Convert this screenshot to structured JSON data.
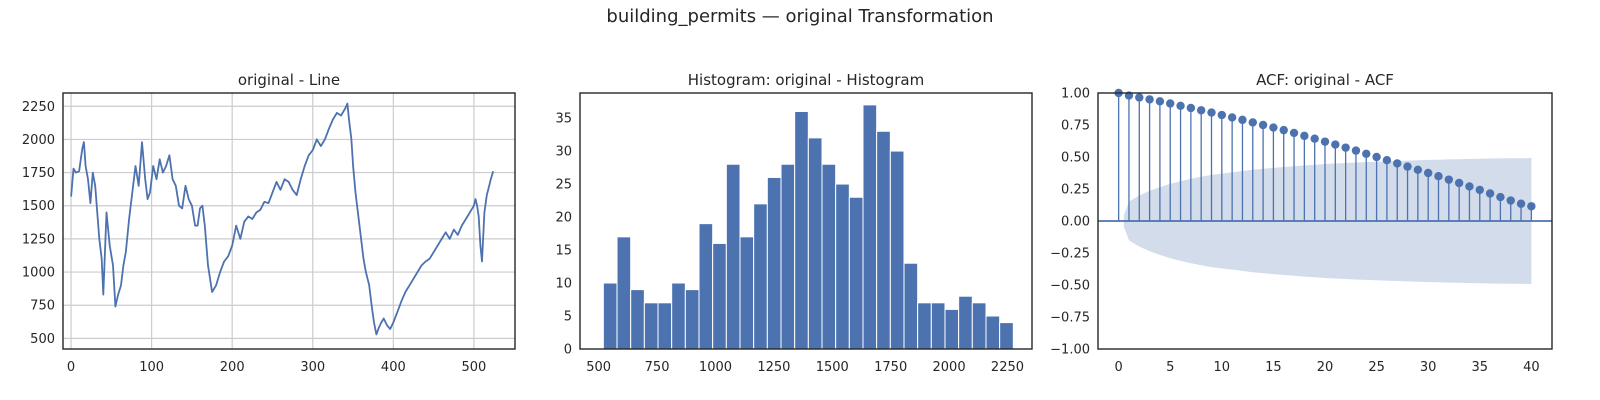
{
  "figure": {
    "title": "building_permits — original Transformation"
  },
  "chart_data": [
    {
      "type": "line",
      "title": "original - Line",
      "xlabel": "",
      "ylabel": "",
      "xlim": [
        -10,
        551
      ],
      "ylim": [
        420,
        2350
      ],
      "xticks": [
        0,
        100,
        200,
        300,
        400,
        500
      ],
      "yticks": [
        500,
        750,
        1000,
        1250,
        1500,
        1750,
        2000,
        2250
      ],
      "grid": true,
      "color": "#4c72b0",
      "series": [
        {
          "x": [
            0,
            3,
            6,
            10,
            14,
            16,
            18,
            21,
            24,
            27,
            30,
            35,
            38,
            40,
            44,
            48,
            52,
            55,
            58,
            62,
            65,
            68,
            72,
            76,
            80,
            84,
            88,
            92,
            95,
            98,
            102,
            106,
            110,
            114,
            118,
            122,
            126,
            130,
            134,
            138,
            142,
            146,
            150,
            154,
            157,
            160,
            163,
            166,
            170,
            175,
            180,
            185,
            190,
            195,
            200,
            205,
            210,
            215,
            220,
            225,
            230,
            235,
            240,
            245,
            250,
            255,
            260,
            265,
            270,
            275,
            280,
            285,
            290,
            295,
            300,
            305,
            310,
            315,
            320,
            325,
            330,
            335,
            340,
            343,
            345,
            348,
            350,
            353,
            356,
            360,
            363,
            366,
            370,
            373,
            376,
            379,
            382,
            385,
            388,
            392,
            396,
            400,
            405,
            410,
            415,
            420,
            425,
            430,
            435,
            440,
            445,
            450,
            455,
            460,
            465,
            470,
            475,
            480,
            485,
            490,
            495,
            500,
            502,
            504,
            506,
            508,
            510,
            513,
            516,
            519,
            521,
            524
          ],
          "y": [
            1570,
            1780,
            1750,
            1760,
            1930,
            1980,
            1800,
            1700,
            1520,
            1750,
            1650,
            1250,
            1100,
            830,
            1450,
            1200,
            1050,
            740,
            820,
            900,
            1050,
            1150,
            1400,
            1600,
            1800,
            1650,
            1980,
            1700,
            1550,
            1600,
            1800,
            1700,
            1850,
            1750,
            1800,
            1880,
            1700,
            1650,
            1500,
            1480,
            1650,
            1550,
            1500,
            1350,
            1350,
            1480,
            1500,
            1350,
            1050,
            850,
            900,
            1000,
            1080,
            1120,
            1200,
            1350,
            1250,
            1380,
            1420,
            1400,
            1450,
            1470,
            1530,
            1520,
            1600,
            1680,
            1620,
            1700,
            1680,
            1620,
            1580,
            1700,
            1800,
            1880,
            1920,
            2000,
            1950,
            2000,
            2080,
            2150,
            2200,
            2180,
            2230,
            2270,
            2150,
            2000,
            1800,
            1600,
            1450,
            1250,
            1100,
            1000,
            900,
            750,
            620,
            530,
            580,
            620,
            650,
            600,
            570,
            620,
            700,
            780,
            850,
            900,
            950,
            1000,
            1050,
            1080,
            1100,
            1150,
            1200,
            1250,
            1300,
            1250,
            1320,
            1280,
            1350,
            1400,
            1450,
            1500,
            1550,
            1500,
            1420,
            1200,
            1080,
            1450,
            1580,
            1650,
            1700,
            1760
          ]
        }
      ]
    },
    {
      "type": "bar",
      "title": "Histogram: original - Histogram",
      "xlabel": "",
      "ylabel": "",
      "xlim": [
        420,
        2355
      ],
      "ylim": [
        0,
        38.8
      ],
      "xticks": [
        500,
        750,
        1000,
        1250,
        1500,
        1750,
        2000,
        2250
      ],
      "yticks": [
        0,
        5,
        10,
        15,
        20,
        25,
        30,
        35
      ],
      "grid": false,
      "color": "#4c72b0",
      "bin_start": 520,
      "bin_width": 58.5,
      "values": [
        10,
        17,
        9,
        7,
        7,
        10,
        9,
        19,
        16,
        28,
        17,
        22,
        26,
        28,
        36,
        32,
        28,
        25,
        23,
        37,
        33,
        30,
        13,
        7,
        7,
        6,
        8,
        7,
        5,
        4
      ]
    },
    {
      "type": "scatter",
      "subtype": "stem",
      "title": "ACF: original - ACF",
      "xlabel": "",
      "ylabel": "",
      "xlim": [
        -2,
        42
      ],
      "ylim": [
        -1.0,
        1.0
      ],
      "xticks": [
        0,
        5,
        10,
        15,
        20,
        25,
        30,
        35,
        40
      ],
      "yticks": [
        -1.0,
        -0.75,
        -0.5,
        -0.25,
        0.0,
        0.25,
        0.5,
        0.75,
        1.0
      ],
      "yticklabels": [
        "−1.00",
        "−0.75",
        "−0.50",
        "−0.25",
        "0.00",
        "0.25",
        "0.50",
        "0.75",
        "1.00"
      ],
      "grid": false,
      "color": "#4c72b0",
      "confidence_color": "#4c72b0",
      "lags": [
        0,
        1,
        2,
        3,
        4,
        5,
        6,
        7,
        8,
        9,
        10,
        11,
        12,
        13,
        14,
        15,
        16,
        17,
        18,
        19,
        20,
        21,
        22,
        23,
        24,
        25,
        26,
        27,
        28,
        29,
        30,
        31,
        32,
        33,
        34,
        35,
        36,
        37,
        38,
        39,
        40
      ],
      "values": [
        1.0,
        0.98,
        0.965,
        0.95,
        0.935,
        0.918,
        0.9,
        0.883,
        0.865,
        0.847,
        0.828,
        0.809,
        0.79,
        0.77,
        0.75,
        0.73,
        0.71,
        0.688,
        0.665,
        0.643,
        0.62,
        0.597,
        0.573,
        0.55,
        0.525,
        0.5,
        0.475,
        0.45,
        0.425,
        0.4,
        0.375,
        0.35,
        0.323,
        0.297,
        0.27,
        0.243,
        0.215,
        0.187,
        0.16,
        0.135,
        0.115
      ],
      "confidence": [
        0.088,
        0.15,
        0.2,
        0.235,
        0.265,
        0.29,
        0.31,
        0.33,
        0.345,
        0.36,
        0.37,
        0.38,
        0.39,
        0.4,
        0.408,
        0.415,
        0.422,
        0.428,
        0.434,
        0.44,
        0.445,
        0.449,
        0.453,
        0.457,
        0.46,
        0.463,
        0.466,
        0.469,
        0.472,
        0.475,
        0.477,
        0.479,
        0.481,
        0.483,
        0.485,
        0.487,
        0.488,
        0.489,
        0.49,
        0.491,
        0.492
      ]
    }
  ]
}
